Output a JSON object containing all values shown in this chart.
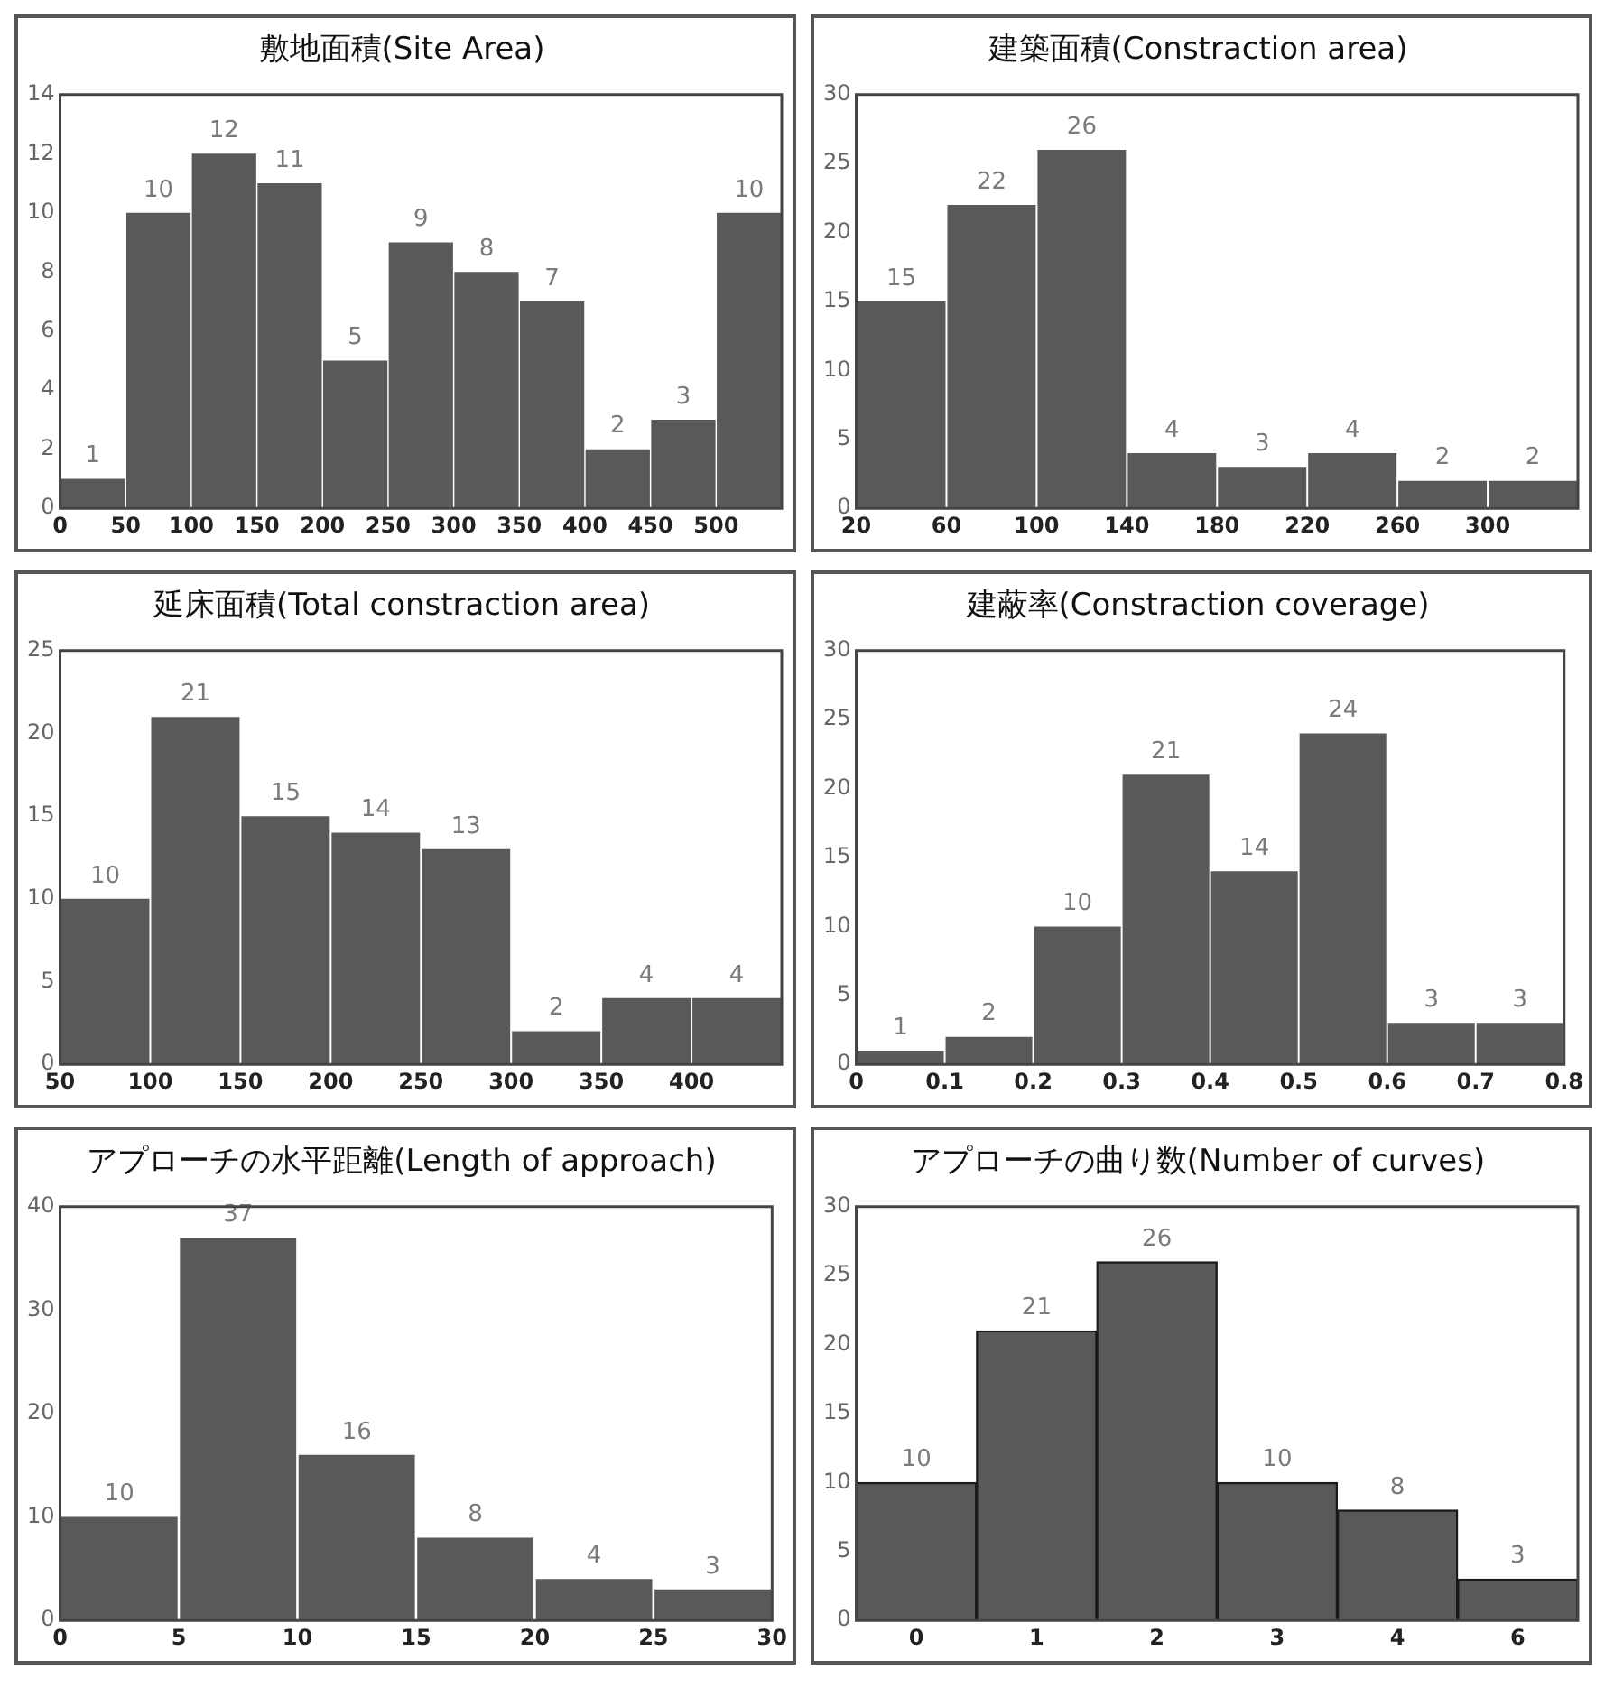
{
  "chart_data": [
    {
      "type": "histogram",
      "title": "敷地面積(Site Area)",
      "bins": [
        0,
        50,
        100,
        150,
        200,
        250,
        300,
        350,
        400,
        450,
        500,
        550
      ],
      "values": [
        1,
        10,
        12,
        11,
        5,
        9,
        8,
        7,
        2,
        3,
        10
      ],
      "color": "#595959",
      "xlim": [
        0,
        550
      ],
      "xticks": [
        0,
        50,
        100,
        150,
        200,
        250,
        300,
        350,
        400,
        450,
        500
      ],
      "ylim": [
        0,
        14
      ],
      "yticks": [
        0,
        2,
        4,
        6,
        8,
        10,
        12,
        14
      ],
      "data_labels": true,
      "grid": false,
      "legend": false
    },
    {
      "type": "histogram",
      "title": "建築面積(Constraction area)",
      "bins": [
        20,
        60,
        100,
        140,
        180,
        220,
        260,
        300,
        340
      ],
      "values": [
        15,
        22,
        26,
        4,
        3,
        4,
        2,
        2
      ],
      "color": "#595959",
      "xlim": [
        20,
        340
      ],
      "xticks": [
        20,
        60,
        100,
        140,
        180,
        220,
        260,
        300
      ],
      "ylim": [
        0,
        30
      ],
      "yticks": [
        0,
        5,
        10,
        15,
        20,
        25,
        30
      ],
      "data_labels": true,
      "grid": false,
      "legend": false
    },
    {
      "type": "histogram",
      "title": "延床面積(Total constraction area)",
      "bins": [
        50,
        100,
        150,
        200,
        250,
        300,
        350,
        400,
        450
      ],
      "values": [
        10,
        21,
        15,
        14,
        13,
        2,
        4,
        4
      ],
      "color": "#595959",
      "xlim": [
        50,
        450
      ],
      "xticks": [
        50,
        100,
        150,
        200,
        250,
        300,
        350,
        400
      ],
      "ylim": [
        0,
        25
      ],
      "yticks": [
        0,
        5,
        10,
        15,
        20,
        25
      ],
      "data_labels": true,
      "grid": false,
      "legend": false
    },
    {
      "type": "histogram",
      "title": "建蔽率(Constraction coverage)",
      "bins": [
        0,
        0.1,
        0.2,
        0.3,
        0.4,
        0.5,
        0.6,
        0.7,
        0.8
      ],
      "values": [
        1,
        2,
        10,
        21,
        14,
        24,
        3,
        3
      ],
      "color": "#595959",
      "xlim": [
        0,
        0.8
      ],
      "xticks": [
        0,
        0.1,
        0.2,
        0.3,
        0.4,
        0.5,
        0.6,
        0.7,
        0.8
      ],
      "ylim": [
        0,
        30
      ],
      "yticks": [
        0,
        5,
        10,
        15,
        20,
        25,
        30
      ],
      "data_labels": true,
      "grid": false,
      "legend": false
    },
    {
      "type": "histogram",
      "title": "アプローチの水平距離(Length of approach)",
      "bins": [
        0,
        5,
        10,
        15,
        20,
        25,
        30
      ],
      "values": [
        10,
        37,
        16,
        8,
        4,
        3
      ],
      "color": "#595959",
      "xlim": [
        0,
        30
      ],
      "xticks": [
        0,
        5,
        10,
        15,
        20,
        25,
        30
      ],
      "ylim": [
        0,
        40
      ],
      "yticks": [
        0,
        10,
        20,
        30,
        40
      ],
      "data_labels": true,
      "grid": false,
      "legend": false
    },
    {
      "type": "bar",
      "title": "アプローチの曲り数(Number of curves)",
      "categories": [
        "0",
        "1",
        "2",
        "3",
        "4",
        "6"
      ],
      "values": [
        10,
        21,
        26,
        10,
        8,
        3
      ],
      "color": "#595959",
      "ylim": [
        0,
        30
      ],
      "yticks": [
        0,
        5,
        10,
        15,
        20,
        25,
        30
      ],
      "data_labels": true,
      "grid": false,
      "legend": false
    }
  ]
}
